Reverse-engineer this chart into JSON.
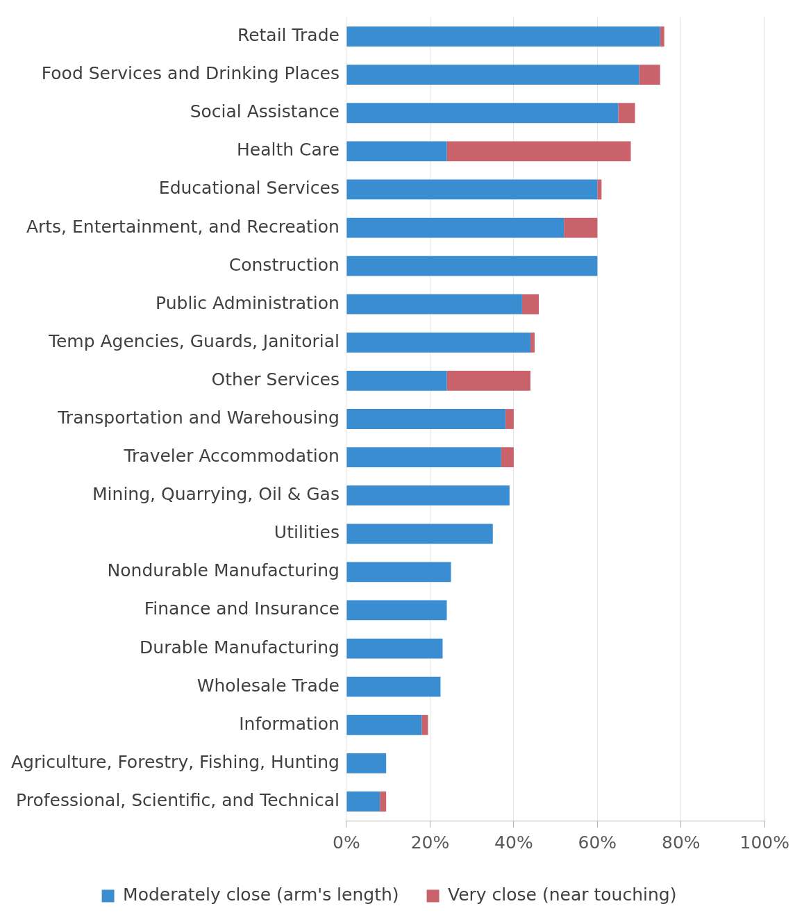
{
  "chart_data": {
    "type": "bar",
    "orientation": "horizontal",
    "stacked": true,
    "categories": [
      "Retail Trade",
      "Food Services and Drinking Places",
      "Social Assistance",
      "Health Care",
      "Educational Services",
      "Arts, Entertainment, and Recreation",
      "Construction",
      "Public Administration",
      "Temp Agencies, Guards, Janitorial",
      "Other Services",
      "Transportation and Warehousing",
      "Traveler Accommodation",
      "Mining, Quarrying, Oil & Gas",
      "Utilities",
      "Nondurable Manufacturing",
      "Finance and Insurance",
      "Durable Manufacturing",
      "Wholesale Trade",
      "Information",
      "Agriculture, Forestry, Fishing, Hunting",
      "Professional, Scientific, and Technical"
    ],
    "series": [
      {
        "name": "Moderately close (arm's length)",
        "color": "#3a8dd0",
        "values": [
          75,
          70,
          65,
          24,
          60,
          52,
          60,
          42,
          44,
          24,
          38,
          37,
          39,
          35,
          25,
          24,
          23,
          22.5,
          18,
          9.5,
          8
        ]
      },
      {
        "name": "Very close (near touching)",
        "color": "#c9626b",
        "values": [
          1,
          5,
          4,
          44,
          1,
          8,
          null,
          4,
          1,
          20,
          2,
          3,
          null,
          null,
          null,
          null,
          null,
          null,
          1.5,
          null,
          1.5
        ]
      }
    ],
    "xlim": [
      0,
      100
    ],
    "xticks": [
      {
        "value": 0,
        "label": "0%"
      },
      {
        "value": 20,
        "label": "20%"
      },
      {
        "value": 40,
        "label": "40%"
      },
      {
        "value": 60,
        "label": "60%"
      },
      {
        "value": 80,
        "label": "80%"
      },
      {
        "value": 100,
        "label": "100%"
      }
    ],
    "grid": "x",
    "legend": "bottom"
  }
}
